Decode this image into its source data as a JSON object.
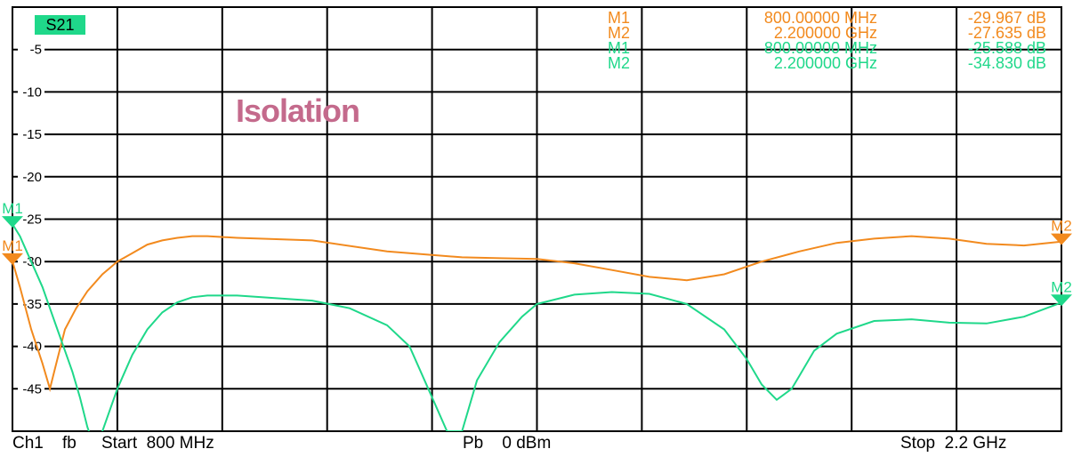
{
  "trace_badge": "S21",
  "annotation": "Isolation",
  "footer": {
    "channel": "Ch1",
    "mode": "fb",
    "start": "Start  800 MHz",
    "power": "Pb    0 dBm",
    "stop": "Stop  2.2 GHz"
  },
  "colors": {
    "orange": "#f28a1e",
    "green": "#1fd88a",
    "badge": "#1fd88a",
    "annotation": "#c46a8c",
    "grid": "#000000"
  },
  "markers": {
    "orange": [
      {
        "id": "M1",
        "freq": "800.00000 MHz",
        "value": "-29.967 dB"
      },
      {
        "id": "M2",
        "freq": "2.200000 GHz",
        "value": "-27.635 dB"
      }
    ],
    "green": [
      {
        "id": "M1",
        "freq": "800.00000 MHz",
        "value": "-25.588 dB"
      },
      {
        "id": "M2",
        "freq": "2.200000 GHz",
        "value": "-34.830 dB"
      }
    ]
  },
  "chart_data": {
    "type": "line",
    "x_unit": "MHz",
    "xlim": [
      800,
      2200
    ],
    "ylim": [
      -50,
      0
    ],
    "y_ticks": [
      -5,
      -10,
      -15,
      -20,
      -25,
      -30,
      -35,
      -40,
      -45
    ],
    "x_divisions": 10,
    "grid": true,
    "series": [
      {
        "color_key": "orange",
        "x": [
          800,
          810,
          825,
          840,
          850,
          860,
          870,
          885,
          900,
          920,
          940,
          960,
          980,
          1000,
          1020,
          1040,
          1060,
          1100,
          1200,
          1300,
          1400,
          1450,
          1500,
          1550,
          1600,
          1650,
          1700,
          1750,
          1800,
          1850,
          1900,
          1950,
          2000,
          2050,
          2100,
          2150,
          2200
        ],
        "y": [
          -29.97,
          -33,
          -38,
          -42,
          -45,
          -41.5,
          -38,
          -35.5,
          -33.5,
          -31.5,
          -30,
          -29,
          -28,
          -27.5,
          -27.2,
          -27,
          -27,
          -27.2,
          -27.5,
          -28.8,
          -29.5,
          -29.6,
          -29.7,
          -30.2,
          -31,
          -31.8,
          -32.2,
          -31.5,
          -30,
          -28.8,
          -27.8,
          -27.3,
          -27,
          -27.3,
          -27.9,
          -28.1,
          -27.64
        ]
      },
      {
        "color_key": "green",
        "x": [
          800,
          810,
          820,
          830,
          840,
          850,
          860,
          870,
          880,
          890,
          900,
          910,
          920,
          940,
          960,
          980,
          1000,
          1020,
          1040,
          1060,
          1080,
          1100,
          1150,
          1200,
          1250,
          1300,
          1330,
          1350,
          1380,
          1400,
          1420,
          1450,
          1480,
          1500,
          1550,
          1600,
          1650,
          1700,
          1750,
          1780,
          1800,
          1820,
          1840,
          1850,
          1870,
          1900,
          1950,
          2000,
          2050,
          2100,
          2150,
          2200
        ],
        "y": [
          -25.59,
          -27,
          -29,
          -31,
          -33,
          -35.5,
          -38,
          -40.5,
          -43,
          -46,
          -49.5,
          -52,
          -50,
          -45,
          -41,
          -38,
          -36,
          -34.8,
          -34.2,
          -34,
          -34,
          -34,
          -34.3,
          -34.6,
          -35.5,
          -37.5,
          -40,
          -44,
          -50,
          -50,
          -44,
          -39.5,
          -36.5,
          -35,
          -33.9,
          -33.6,
          -33.8,
          -35,
          -38,
          -41.5,
          -44.5,
          -46.3,
          -45,
          -43.5,
          -40.5,
          -38.5,
          -37,
          -36.8,
          -37.2,
          -37.3,
          -36.5,
          -34.83
        ]
      }
    ]
  }
}
